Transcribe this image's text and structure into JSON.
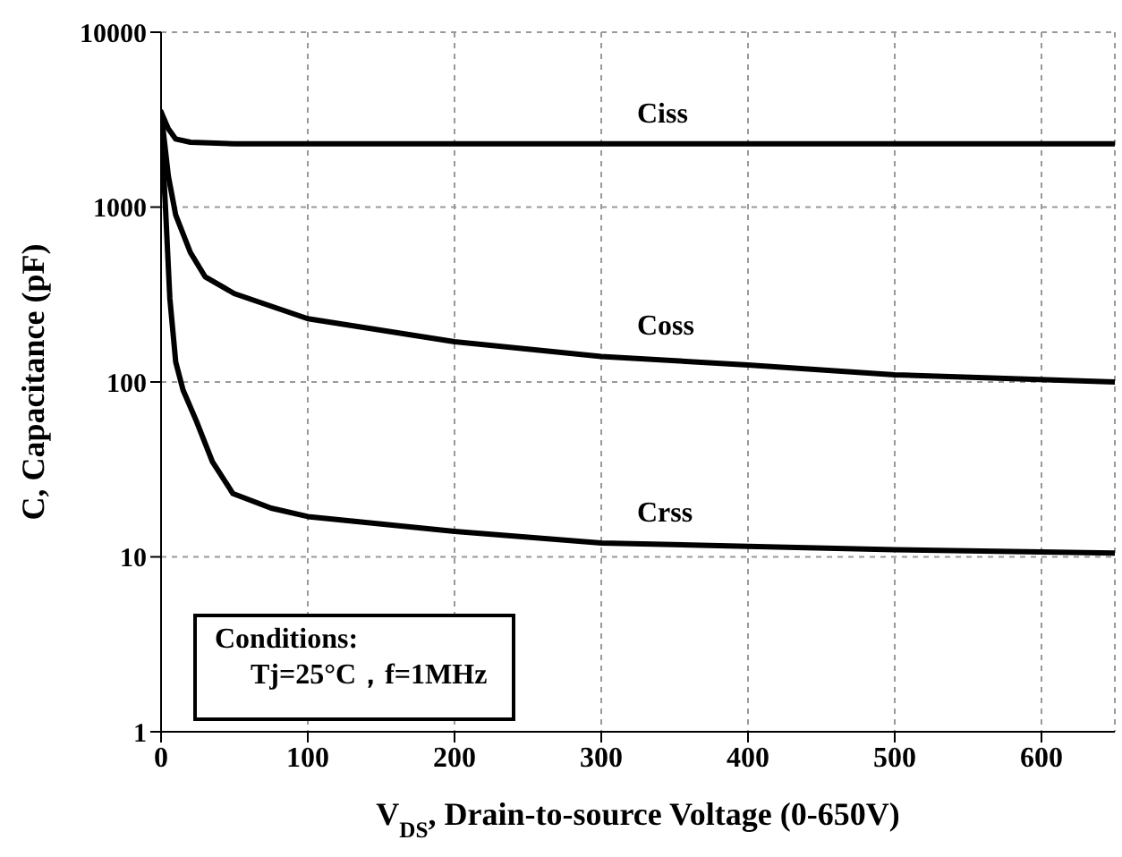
{
  "chart_data": {
    "type": "line",
    "xlabel": "V$_{DS}$, Drain-to-source Voltage (0-650V)",
    "ylabel": "C, Capacitance (pF)",
    "log": "y",
    "grid": true,
    "marker": "none",
    "line_style": "solid",
    "xlim": [
      0,
      650
    ],
    "xticks": [
      0,
      100,
      200,
      300,
      400,
      500,
      600
    ],
    "ylim": [
      1,
      10000
    ],
    "yticks": [
      1,
      10,
      100,
      1000,
      10000
    ],
    "annotations": [
      "Conditions:",
      "Tj=25°C，f=1MHz"
    ],
    "series": [
      {
        "name": "Ciss",
        "color": "#000000",
        "x": [
          0,
          5,
          10,
          20,
          50,
          300,
          650
        ],
        "values": [
          3500,
          2800,
          2450,
          2350,
          2300,
          2300,
          2300
        ]
      },
      {
        "name": "Coss",
        "color": "#000000",
        "x": [
          0,
          5,
          10,
          20,
          30,
          50,
          100,
          200,
          300,
          400,
          500,
          650
        ],
        "values": [
          3500,
          1500,
          900,
          550,
          400,
          320,
          230,
          170,
          140,
          125,
          110,
          100
        ]
      },
      {
        "name": "Crss",
        "color": "#000000",
        "x": [
          0,
          3,
          6,
          10,
          15,
          24,
          35,
          49,
          75,
          100,
          200,
          300,
          400,
          500,
          650
        ],
        "values": [
          3000,
          1000,
          300,
          130,
          90,
          60,
          35,
          23,
          19,
          17,
          14,
          12,
          11.5,
          11,
          10.5
        ]
      }
    ]
  }
}
